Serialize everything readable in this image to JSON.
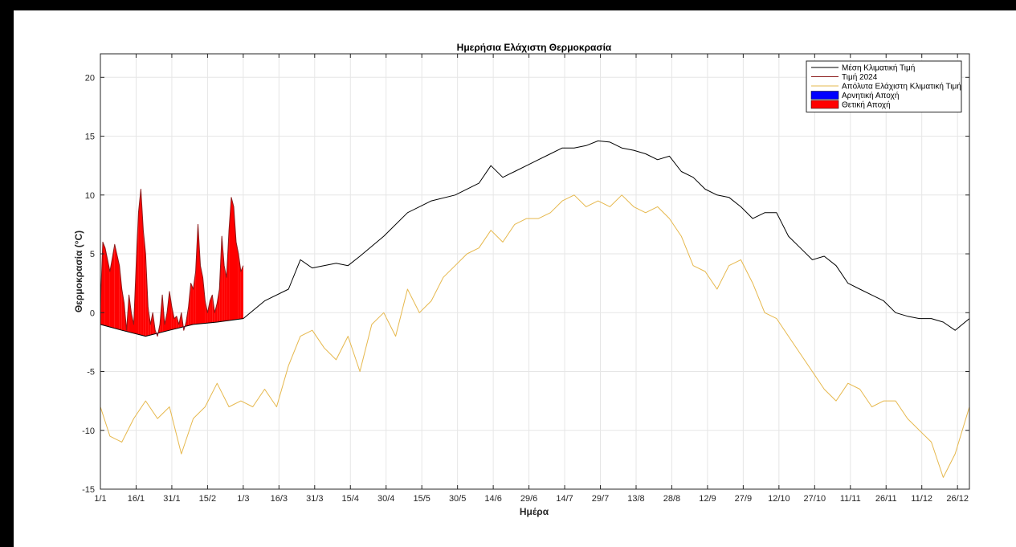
{
  "chart_data": {
    "type": "line",
    "title": "Ημερήσια Ελάχιστη Θερμοκρασία",
    "xlabel": "Ημέρα",
    "ylabel": "Θερμοκρασία (°C)",
    "ylim": [
      -15,
      22
    ],
    "xlim": [
      1,
      366
    ],
    "grid": true,
    "legend_position": "top-right",
    "x_ticks": [
      {
        "day": 1,
        "label": "1/1"
      },
      {
        "day": 16,
        "label": "16/1"
      },
      {
        "day": 31,
        "label": "31/1"
      },
      {
        "day": 46,
        "label": "15/2"
      },
      {
        "day": 61,
        "label": "1/3"
      },
      {
        "day": 76,
        "label": "16/3"
      },
      {
        "day": 91,
        "label": "31/3"
      },
      {
        "day": 106,
        "label": "15/4"
      },
      {
        "day": 121,
        "label": "30/4"
      },
      {
        "day": 136,
        "label": "15/5"
      },
      {
        "day": 151,
        "label": "30/5"
      },
      {
        "day": 166,
        "label": "14/6"
      },
      {
        "day": 181,
        "label": "29/6"
      },
      {
        "day": 196,
        "label": "14/7"
      },
      {
        "day": 211,
        "label": "29/7"
      },
      {
        "day": 226,
        "label": "13/8"
      },
      {
        "day": 241,
        "label": "28/8"
      },
      {
        "day": 256,
        "label": "12/9"
      },
      {
        "day": 271,
        "label": "27/9"
      },
      {
        "day": 286,
        "label": "12/10"
      },
      {
        "day": 301,
        "label": "27/10"
      },
      {
        "day": 316,
        "label": "11/11"
      },
      {
        "day": 331,
        "label": "26/11"
      },
      {
        "day": 346,
        "label": "11/12"
      },
      {
        "day": 361,
        "label": "26/12"
      }
    ],
    "y_ticks": [
      -15,
      -10,
      -5,
      0,
      5,
      10,
      15,
      20
    ],
    "series": [
      {
        "name": "Μέση Κλιματική Τιμή",
        "color": "#000000",
        "x": [
          1,
          10,
          20,
          30,
          40,
          50,
          61,
          70,
          80,
          85,
          90,
          100,
          105,
          110,
          120,
          130,
          140,
          150,
          160,
          165,
          170,
          175,
          180,
          185,
          190,
          195,
          200,
          205,
          210,
          215,
          220,
          225,
          230,
          235,
          240,
          245,
          250,
          255,
          260,
          265,
          270,
          275,
          280,
          285,
          290,
          295,
          300,
          305,
          310,
          315,
          320,
          325,
          330,
          335,
          340,
          345,
          350,
          355,
          360,
          366
        ],
        "values": [
          -1.0,
          -1.5,
          -2.0,
          -1.5,
          -1.0,
          -0.8,
          -0.5,
          1.0,
          2.0,
          4.5,
          3.8,
          4.2,
          4.0,
          4.8,
          6.5,
          8.5,
          9.5,
          10.0,
          11.0,
          12.5,
          11.5,
          12.0,
          12.5,
          13.0,
          13.5,
          14.0,
          14.0,
          14.2,
          14.6,
          14.5,
          14.0,
          13.8,
          13.5,
          13.0,
          13.3,
          12.0,
          11.5,
          10.5,
          10.0,
          9.8,
          9.0,
          8.0,
          8.5,
          8.5,
          6.5,
          5.5,
          4.5,
          4.8,
          4.0,
          2.5,
          2.0,
          1.5,
          1.0,
          0.0,
          -0.3,
          -0.5,
          -0.5,
          -0.8,
          -1.5,
          -0.5
        ]
      },
      {
        "name": "Τιμή 2024",
        "color": "#8b1a1a",
        "x": [
          1,
          2,
          3,
          5,
          7,
          9,
          10,
          11,
          12,
          13,
          14,
          15,
          16,
          17,
          18,
          19,
          20,
          21,
          22,
          23,
          24,
          25,
          26,
          27,
          28,
          29,
          30,
          31,
          32,
          33,
          34,
          35,
          36,
          37,
          38,
          39,
          40,
          41,
          42,
          43,
          44,
          45,
          46,
          47,
          48,
          49,
          50,
          51,
          52,
          53,
          54,
          55,
          56,
          57,
          58,
          59,
          60,
          61
        ],
        "values": [
          0.5,
          6.0,
          5.5,
          3.5,
          5.8,
          4.0,
          2.0,
          0.8,
          -1.5,
          1.5,
          0.0,
          -1.0,
          4.0,
          8.5,
          10.5,
          7.0,
          5.0,
          0.5,
          -1.0,
          0.0,
          -1.5,
          -2.0,
          -1.0,
          1.5,
          -1.0,
          0.0,
          1.8,
          0.5,
          -0.5,
          -0.3,
          -1.0,
          0.0,
          -1.5,
          -0.8,
          0.5,
          2.5,
          2.0,
          3.5,
          7.5,
          4.0,
          3.0,
          1.0,
          0.0,
          1.0,
          1.5,
          0.0,
          0.8,
          2.0,
          6.5,
          4.0,
          3.0,
          7.0,
          9.8,
          9.0,
          6.0,
          5.0,
          3.5,
          4.0
        ]
      },
      {
        "name": "Απόλυτα Ελάχιστη Κλιματική Τιμή",
        "color": "#e6b84d",
        "x": [
          1,
          5,
          10,
          15,
          20,
          25,
          30,
          35,
          40,
          45,
          50,
          55,
          60,
          65,
          70,
          75,
          80,
          85,
          90,
          95,
          100,
          105,
          110,
          115,
          120,
          125,
          130,
          135,
          140,
          145,
          150,
          155,
          160,
          165,
          170,
          175,
          180,
          185,
          190,
          195,
          200,
          205,
          210,
          215,
          220,
          225,
          230,
          235,
          240,
          245,
          250,
          255,
          260,
          265,
          270,
          275,
          280,
          285,
          290,
          295,
          300,
          305,
          310,
          315,
          320,
          325,
          330,
          335,
          340,
          345,
          350,
          355,
          360,
          366
        ],
        "values": [
          -8,
          -10.5,
          -11,
          -9,
          -7.5,
          -9,
          -8,
          -12,
          -9,
          -8,
          -6,
          -8,
          -7.5,
          -8,
          -6.5,
          -8,
          -4.5,
          -2,
          -1.5,
          -3,
          -4,
          -2,
          -5,
          -1,
          0,
          -2,
          2,
          0,
          1,
          3,
          4,
          5,
          5.5,
          7,
          6,
          7.5,
          8,
          8,
          8.5,
          9.5,
          10,
          9,
          9.5,
          9,
          10,
          9,
          8.5,
          9,
          8,
          6.5,
          4,
          3.5,
          2,
          4,
          4.5,
          2.5,
          0,
          -0.5,
          -2,
          -3.5,
          -5,
          -6.5,
          -7.5,
          -6,
          -6.5,
          -8,
          -7.5,
          -7.5,
          -9,
          -10,
          -11,
          -14,
          -12,
          -8
        ]
      }
    ],
    "fill_series": [
      {
        "name": "Αρνητική Αποχή",
        "color": "#0000ff"
      },
      {
        "name": "Θετική Αποχή",
        "color": "#ff0000"
      }
    ]
  }
}
